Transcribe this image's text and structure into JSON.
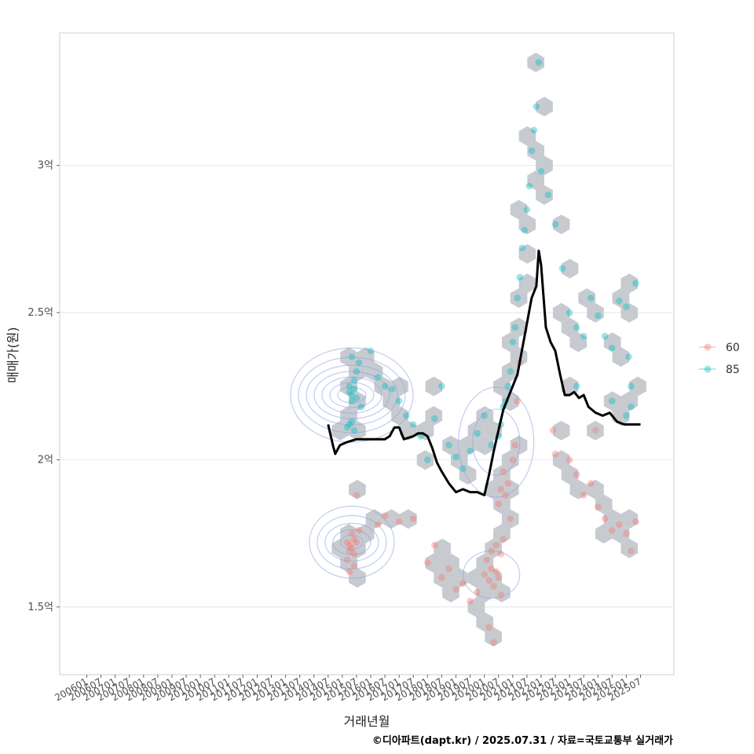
{
  "chart_data": {
    "type": "scatter",
    "xlabel": "거래년월",
    "ylabel": "매매가(원)",
    "caption": "©디아파트(dapt.kr) / 2025.07.31 / 자료=국토교통부 실거래가",
    "x_ticks": [
      "200601",
      "200607",
      "200701",
      "200707",
      "200801",
      "200807",
      "200901",
      "200907",
      "201001",
      "201007",
      "201101",
      "201107",
      "201201",
      "201207",
      "201301",
      "201307",
      "201401",
      "201407",
      "201501",
      "201507",
      "201601",
      "201607",
      "201701",
      "201707",
      "201801",
      "201807",
      "201901",
      "201907",
      "202001",
      "202007",
      "202101",
      "202107",
      "202201",
      "202207",
      "202301",
      "202307",
      "202401",
      "202407",
      "202501",
      "202507"
    ],
    "y_ticks": [
      {
        "value": 1.5,
        "label": "1.5억"
      },
      {
        "value": 2.0,
        "label": "2억"
      },
      {
        "value": 2.5,
        "label": "2.5억"
      },
      {
        "value": 3.0,
        "label": "3억"
      }
    ],
    "y_unit": "억",
    "ylim": [
      1.27,
      3.45
    ],
    "grid": true,
    "legend_position": "right",
    "colors": {
      "60": "#f8766d",
      "85": "#00bfc4",
      "hex": "#c4c8cd",
      "contour": "#8fa3e6",
      "trend": "#000000"
    },
    "series": [
      {
        "name": "60",
        "color": "#f8766d",
        "points": [
          [
            "201503",
            1.72
          ],
          [
            "201504",
            1.71
          ],
          [
            "201505",
            1.7
          ],
          [
            "201506",
            1.73
          ],
          [
            "201504",
            1.69
          ],
          [
            "201505",
            1.75
          ],
          [
            "201506",
            1.68
          ],
          [
            "201507",
            1.72
          ],
          [
            "201503",
            1.66
          ],
          [
            "201504",
            1.62
          ],
          [
            "201506",
            1.64
          ],
          [
            "201507",
            1.88
          ],
          [
            "201508",
            1.76
          ],
          [
            "201604",
            1.78
          ],
          [
            "201607",
            1.81
          ],
          [
            "201701",
            1.79
          ],
          [
            "201707",
            1.8
          ],
          [
            "201801",
            1.65
          ],
          [
            "201804",
            1.71
          ],
          [
            "201807",
            1.6
          ],
          [
            "201810",
            1.63
          ],
          [
            "201901",
            1.56
          ],
          [
            "201904",
            1.58
          ],
          [
            "201907",
            1.52
          ],
          [
            "201910",
            1.55
          ],
          [
            "202001",
            1.61
          ],
          [
            "202003",
            1.59
          ],
          [
            "202004",
            1.63
          ],
          [
            "202005",
            1.57
          ],
          [
            "202006",
            1.62
          ],
          [
            "202007",
            1.6
          ],
          [
            "202008",
            1.54
          ],
          [
            "202002",
            1.66
          ],
          [
            "202004",
            1.69
          ],
          [
            "202006",
            1.71
          ],
          [
            "202008",
            1.68
          ],
          [
            "202009",
            1.73
          ],
          [
            "202003",
            1.43
          ],
          [
            "202005",
            1.38
          ],
          [
            "202007",
            1.85
          ],
          [
            "202008",
            1.9
          ],
          [
            "202009",
            1.96
          ],
          [
            "202010",
            1.88
          ],
          [
            "202011",
            1.92
          ],
          [
            "202012",
            1.8
          ],
          [
            "202101",
            2.0
          ],
          [
            "202102",
            2.05
          ],
          [
            "202103",
            2.2
          ],
          [
            "202104",
            2.33
          ],
          [
            "202206",
            2.1
          ],
          [
            "202207",
            2.02
          ],
          [
            "202301",
            2.0
          ],
          [
            "202304",
            1.95
          ],
          [
            "202307",
            1.88
          ],
          [
            "202310",
            1.92
          ],
          [
            "202401",
            1.84
          ],
          [
            "202404",
            1.8
          ],
          [
            "202407",
            1.76
          ],
          [
            "202410",
            1.78
          ],
          [
            "202501",
            1.75
          ],
          [
            "202503",
            1.69
          ],
          [
            "202505",
            1.79
          ],
          [
            "202312",
            2.1
          ]
        ]
      },
      {
        "name": "85",
        "color": "#00bfc4",
        "points": [
          [
            "201504",
            2.23
          ],
          [
            "201505",
            2.22
          ],
          [
            "201506",
            2.24
          ],
          [
            "201507",
            2.21
          ],
          [
            "201504",
            2.25
          ],
          [
            "201505",
            2.2
          ],
          [
            "201506",
            2.27
          ],
          [
            "201503",
            2.11
          ],
          [
            "201504",
            2.12
          ],
          [
            "201505",
            2.13
          ],
          [
            "201506",
            2.1
          ],
          [
            "201507",
            2.3
          ],
          [
            "201508",
            2.33
          ],
          [
            "201505",
            2.35
          ],
          [
            "201509",
            2.18
          ],
          [
            "201601",
            2.37
          ],
          [
            "201604",
            2.28
          ],
          [
            "201607",
            2.25
          ],
          [
            "201610",
            2.24
          ],
          [
            "201701",
            2.2
          ],
          [
            "201704",
            2.15
          ],
          [
            "201707",
            2.12
          ],
          [
            "201710",
            2.08
          ],
          [
            "201801",
            2.0
          ],
          [
            "201804",
            2.14
          ],
          [
            "201807",
            2.25
          ],
          [
            "201810",
            2.05
          ],
          [
            "201901",
            2.01
          ],
          [
            "201904",
            1.97
          ],
          [
            "201907",
            2.03
          ],
          [
            "201910",
            2.09
          ],
          [
            "202001",
            2.15
          ],
          [
            "202004",
            2.05
          ],
          [
            "202007",
            2.08
          ],
          [
            "202008",
            2.12
          ],
          [
            "202009",
            2.18
          ],
          [
            "202010",
            2.2
          ],
          [
            "202011",
            2.25
          ],
          [
            "202012",
            2.3
          ],
          [
            "202101",
            2.4
          ],
          [
            "202102",
            2.45
          ],
          [
            "202103",
            2.55
          ],
          [
            "202104",
            2.62
          ],
          [
            "202105",
            2.72
          ],
          [
            "202106",
            2.78
          ],
          [
            "202107",
            2.85
          ],
          [
            "202108",
            2.93
          ],
          [
            "202109",
            3.05
          ],
          [
            "202110",
            3.12
          ],
          [
            "202111",
            3.2
          ],
          [
            "202112",
            3.35
          ],
          [
            "202201",
            2.98
          ],
          [
            "202204",
            2.9
          ],
          [
            "202207",
            2.8
          ],
          [
            "202210",
            2.65
          ],
          [
            "202301",
            2.5
          ],
          [
            "202304",
            2.45
          ],
          [
            "202307",
            2.42
          ],
          [
            "202310",
            2.55
          ],
          [
            "202401",
            2.49
          ],
          [
            "202404",
            2.42
          ],
          [
            "202407",
            2.38
          ],
          [
            "202410",
            2.54
          ],
          [
            "202501",
            2.52
          ],
          [
            "202502",
            2.35
          ],
          [
            "202503",
            2.25
          ],
          [
            "202505",
            2.6
          ],
          [
            "202304",
            2.25
          ],
          [
            "202407",
            2.2
          ],
          [
            "202501",
            2.15
          ],
          [
            "202503",
            2.18
          ]
        ]
      }
    ],
    "trend": {
      "name": "",
      "color": "#000000",
      "points": [
        [
          "201407",
          2.12
        ],
        [
          "201409",
          2.05
        ],
        [
          "201410",
          2.02
        ],
        [
          "201412",
          2.05
        ],
        [
          "201503",
          2.06
        ],
        [
          "201507",
          2.07
        ],
        [
          "201601",
          2.07
        ],
        [
          "201607",
          2.07
        ],
        [
          "201609",
          2.08
        ],
        [
          "201611",
          2.11
        ],
        [
          "201701",
          2.11
        ],
        [
          "201703",
          2.07
        ],
        [
          "201707",
          2.08
        ],
        [
          "201709",
          2.09
        ],
        [
          "201711",
          2.09
        ],
        [
          "201801",
          2.08
        ],
        [
          "201803",
          2.04
        ],
        [
          "201805",
          1.99
        ],
        [
          "201807",
          1.96
        ],
        [
          "201810",
          1.92
        ],
        [
          "201901",
          1.89
        ],
        [
          "201904",
          1.9
        ],
        [
          "201907",
          1.89
        ],
        [
          "201910",
          1.89
        ],
        [
          "202001",
          1.88
        ],
        [
          "202003",
          1.95
        ],
        [
          "202005",
          2.03
        ],
        [
          "202007",
          2.1
        ],
        [
          "202009",
          2.17
        ],
        [
          "202012",
          2.23
        ],
        [
          "202103",
          2.29
        ],
        [
          "202106",
          2.42
        ],
        [
          "202109",
          2.55
        ],
        [
          "202111",
          2.59
        ],
        [
          "202112",
          2.71
        ],
        [
          "202201",
          2.66
        ],
        [
          "202203",
          2.45
        ],
        [
          "202205",
          2.4
        ],
        [
          "202207",
          2.37
        ],
        [
          "202209",
          2.29
        ],
        [
          "202211",
          2.22
        ],
        [
          "202301",
          2.22
        ],
        [
          "202303",
          2.23
        ],
        [
          "202305",
          2.21
        ],
        [
          "202307",
          2.22
        ],
        [
          "202309",
          2.18
        ],
        [
          "202312",
          2.16
        ],
        [
          "202403",
          2.15
        ],
        [
          "202406",
          2.16
        ],
        [
          "202409",
          2.13
        ],
        [
          "202412",
          2.12
        ],
        [
          "202507",
          2.12
        ]
      ]
    }
  }
}
